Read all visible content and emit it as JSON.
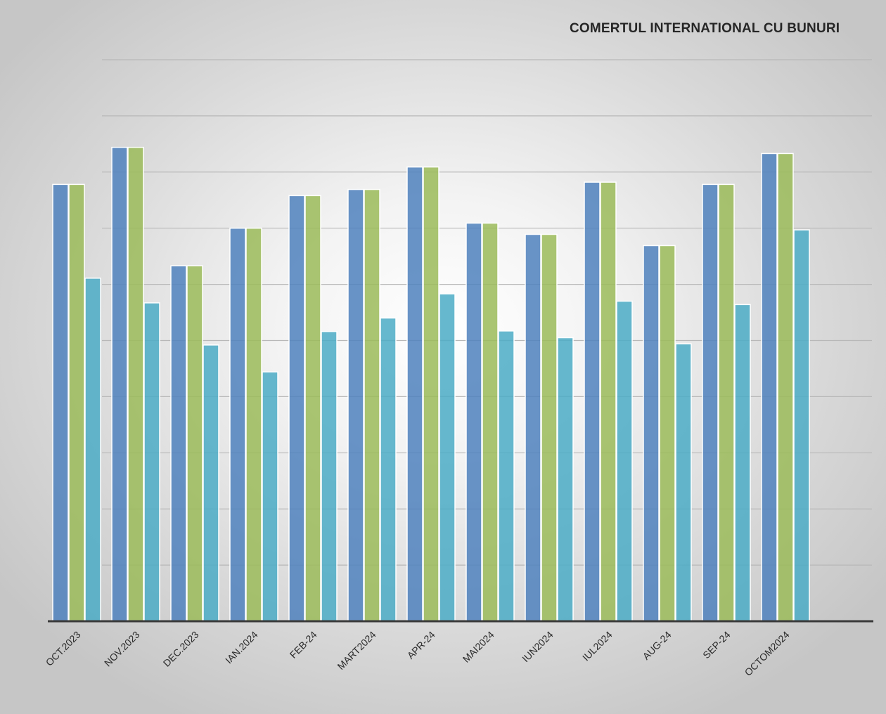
{
  "chart_data": {
    "type": "bar",
    "title": "COMERTUL INTERNATIONAL CU BUNURI",
    "categories": [
      "OCT.2023",
      "NOV.2023",
      "DEC.2023",
      "IAN.2024",
      "FEB-24",
      "MART2024",
      "APR-24",
      "MAI2024",
      "IUN2024",
      "IUL2024",
      "AUG-24",
      "SEP-24",
      "OCTOM2024"
    ],
    "series": [
      {
        "values": [
          7.78,
          8.44,
          6.33,
          7.0,
          7.58,
          7.69,
          8.09,
          7.09,
          6.89,
          7.82,
          6.69,
          7.78,
          8.33
        ],
        "color": "#4f81bd"
      },
      {
        "values": [
          7.78,
          8.44,
          6.33,
          7.0,
          7.58,
          7.69,
          8.09,
          7.09,
          6.89,
          7.82,
          6.69,
          7.78,
          8.33
        ],
        "color": "#9bbb59"
      },
      {
        "values": [
          6.11,
          5.67,
          4.92,
          4.44,
          5.16,
          5.4,
          5.83,
          5.17,
          5.05,
          5.7,
          4.94,
          5.64,
          6.97
        ],
        "color": "#4bacc6"
      }
    ],
    "ylim": [
      0,
      10
    ],
    "grid": true,
    "xlabel": "",
    "ylabel": ""
  }
}
